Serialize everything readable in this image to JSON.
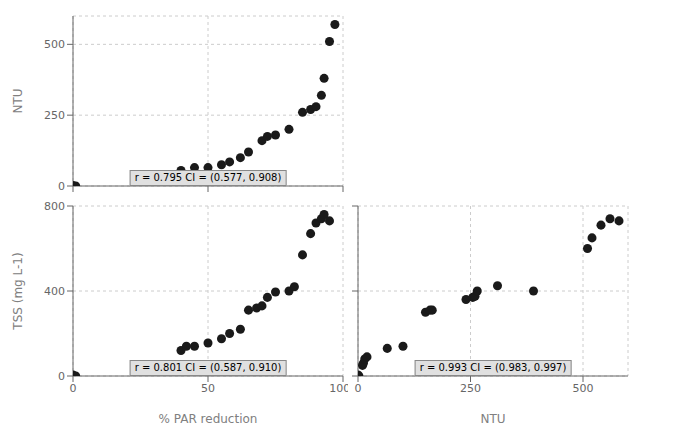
{
  "chart_data": [
    {
      "type": "scatter",
      "x": [
        0,
        1,
        40,
        45,
        50,
        55,
        58,
        62,
        65,
        70,
        72,
        75,
        80,
        85,
        88,
        90,
        92,
        93,
        95,
        97
      ],
      "values": [
        2,
        0,
        55,
        65,
        65,
        75,
        85,
        100,
        120,
        160,
        175,
        180,
        200,
        260,
        270,
        280,
        320,
        380,
        510,
        570
      ],
      "xlim": [
        0,
        100
      ],
      "ylim": [
        0,
        600
      ],
      "xticks": [
        0,
        50,
        100
      ],
      "yticks": [
        0,
        250,
        500
      ],
      "ylabel": "NTU",
      "annotations": [
        "r = 0.795  CI = (0.577, 0.908)"
      ],
      "color": "#1a1a1a",
      "grid": true,
      "tick_labels": "y"
    },
    {
      "type": "scatter",
      "x": [
        0,
        1,
        40,
        42,
        45,
        50,
        55,
        58,
        62,
        65,
        68,
        70,
        72,
        75,
        80,
        82,
        85,
        88,
        90,
        92,
        93,
        95
      ],
      "values": [
        5,
        0,
        120,
        140,
        140,
        155,
        175,
        200,
        220,
        310,
        320,
        330,
        370,
        395,
        400,
        420,
        570,
        670,
        720,
        740,
        760,
        730
      ],
      "xlim": [
        0,
        100
      ],
      "ylim": [
        0,
        800
      ],
      "xticks": [
        0,
        50,
        100
      ],
      "yticks": [
        0,
        400,
        800
      ],
      "xlabel": "% PAR reduction",
      "ylabel": "TSS (mg L-1)",
      "annotations": [
        "r = 0.801  CI = (0.587, 0.910)"
      ],
      "color": "#1a1a1a",
      "grid": true
    },
    {
      "type": "scatter",
      "x": [
        0,
        2,
        10,
        12,
        15,
        20,
        65,
        100,
        150,
        160,
        165,
        240,
        255,
        260,
        265,
        310,
        390,
        510,
        520,
        540,
        560,
        580
      ],
      "values": [
        5,
        0,
        50,
        60,
        80,
        90,
        130,
        140,
        300,
        310,
        310,
        360,
        370,
        375,
        400,
        425,
        400,
        600,
        650,
        710,
        740,
        730
      ],
      "xlim": [
        0,
        600
      ],
      "ylim": [
        0,
        800
      ],
      "xticks": [
        0,
        250,
        500
      ],
      "yticks": [
        0,
        400,
        800
      ],
      "xlabel": "NTU",
      "annotations": [
        "r = 0.993  CI = (0.983, 0.997)"
      ],
      "color": "#1a1a1a",
      "grid": true,
      "tick_labels": "x"
    }
  ]
}
